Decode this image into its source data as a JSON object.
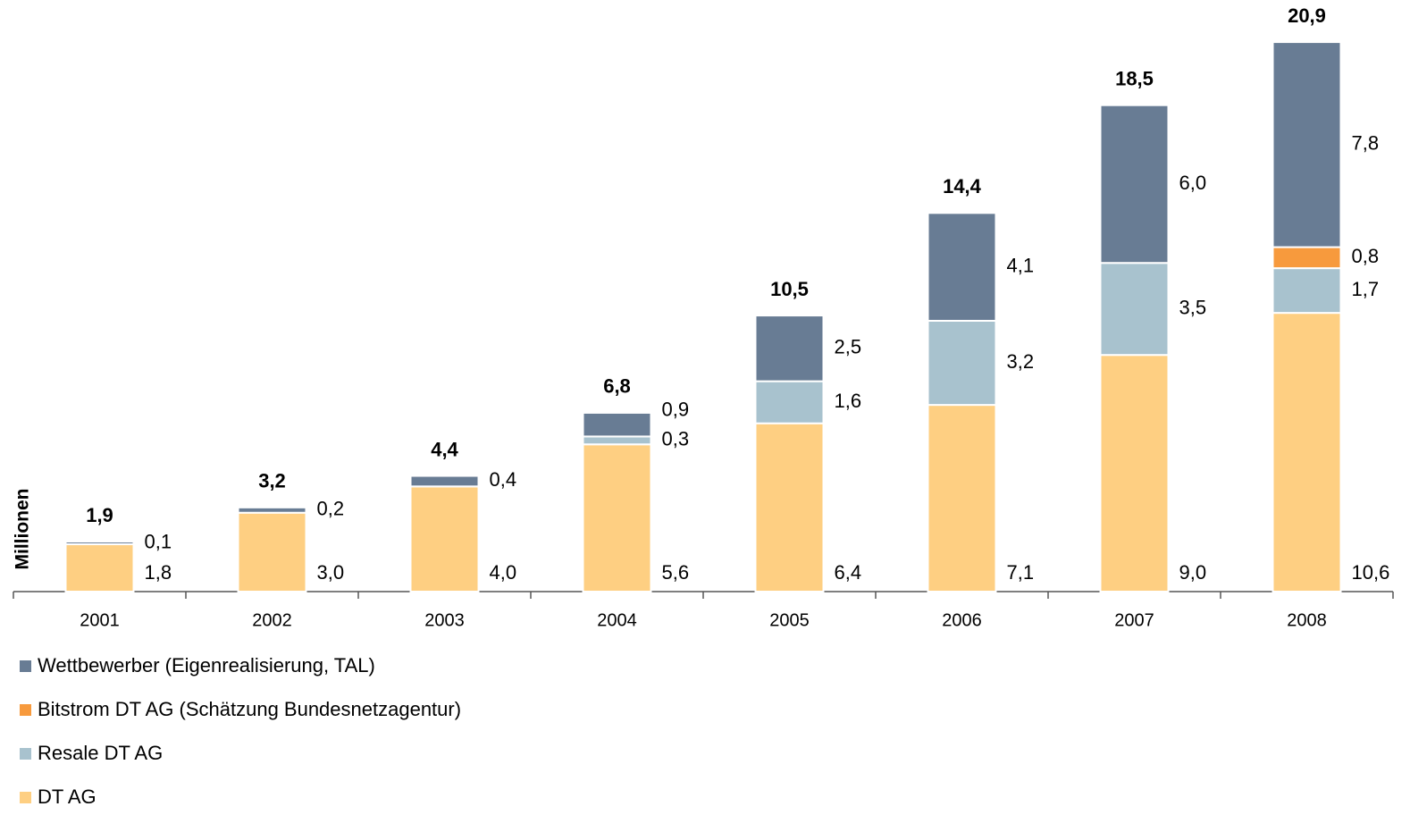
{
  "chart_data": {
    "type": "stacked_bar",
    "y_label": "Millionen",
    "categories": [
      "2001",
      "2002",
      "2003",
      "2004",
      "2005",
      "2006",
      "2007",
      "2008"
    ],
    "series": [
      {
        "name": "DT AG",
        "color": "#fecf82",
        "values": [
          1.8,
          3.0,
          4.0,
          5.6,
          6.4,
          7.1,
          9.0,
          10.6
        ],
        "value_labels": [
          "1,8",
          "3,0",
          "4,0",
          "5,6",
          "6,4",
          "7,1",
          "9,0",
          "10,6"
        ]
      },
      {
        "name": "Resale DT AG",
        "color": "#a8c2ce",
        "values": [
          null,
          null,
          null,
          0.3,
          1.6,
          3.2,
          3.5,
          1.7
        ],
        "value_labels": [
          null,
          null,
          null,
          "0,3",
          "1,6",
          "3,2",
          "3,5",
          "1,7"
        ]
      },
      {
        "name": "Bitstrom DT AG (Schätzung Bundesnetzagentur)",
        "color": "#f79a3d",
        "values": [
          null,
          null,
          null,
          null,
          null,
          null,
          null,
          0.8
        ],
        "value_labels": [
          null,
          null,
          null,
          null,
          null,
          null,
          null,
          "0,8"
        ]
      },
      {
        "name": "Wettbewerber (Eigenrealisierung, TAL)",
        "color": "#687c94",
        "values": [
          0.1,
          0.2,
          0.4,
          0.9,
          2.5,
          4.1,
          6.0,
          7.8
        ],
        "value_labels": [
          "0,1",
          "0,2",
          "0,4",
          "0,9",
          "2,5",
          "4,1",
          "6,0",
          "7,8"
        ]
      }
    ],
    "totals": {
      "values": [
        1.9,
        3.2,
        4.4,
        6.8,
        10.5,
        14.4,
        18.5,
        20.9
      ],
      "value_labels": [
        "1,9",
        "3,2",
        "4,4",
        "6,8",
        "10,5",
        "14,4",
        "18,5",
        "20,9"
      ]
    },
    "ylim": [
      0,
      22.5
    ]
  }
}
